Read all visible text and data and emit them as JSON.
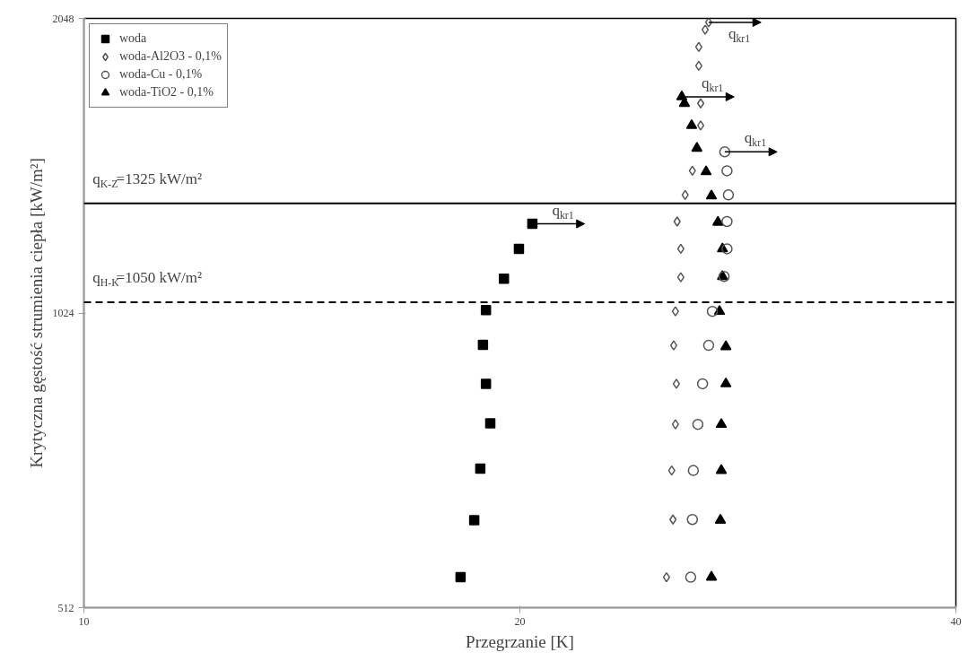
{
  "chart_data": {
    "type": "scatter",
    "xlabel": "Przegrzanie [K]",
    "ylabel": "Krytyczna gęstość strumienia ciepła [kW/m²]",
    "log": "xy",
    "xlim": [
      10,
      40
    ],
    "ylim": [
      512,
      2048
    ],
    "xticks": [
      10,
      20,
      40
    ],
    "yticks": [
      512,
      1024,
      2048
    ],
    "grid": false,
    "legend": "top left",
    "series": [
      {
        "name": "woda",
        "color": "#000000",
        "marker": "square",
        "x": [
          20.4,
          19.97,
          19.5,
          18.95,
          18.86,
          18.95,
          19.08,
          18.78,
          18.6,
          18.2
        ],
        "values": [
          1263,
          1191,
          1110,
          1031,
          950,
          867,
          790,
          710,
          629,
          550
        ]
      },
      {
        "name": "woda-Al2O3 - 0,1%",
        "color": "#555555",
        "marker": "diamond",
        "x": [
          27.0,
          26.85,
          26.58,
          26.58,
          26.66,
          26.66,
          26.31,
          26.01,
          25.68,
          25.83,
          25.83,
          25.61,
          25.54,
          25.65,
          25.61,
          25.46,
          25.51,
          25.25
        ],
        "values": [
          2029,
          1994,
          1915,
          1832,
          1677,
          1592,
          1431,
          1352,
          1270,
          1191,
          1114,
          1028,
          949,
          867,
          788,
          707,
          630,
          550
        ]
      },
      {
        "name": "woda-Cu - 0,1%",
        "color": "#555555",
        "marker": "circle",
        "x": [
          27.7,
          27.8,
          27.86,
          27.8,
          27.8,
          27.67,
          27.16,
          27.0,
          26.74,
          26.54,
          26.35,
          26.31,
          26.24
        ],
        "values": [
          1496,
          1431,
          1352,
          1270,
          1191,
          1116,
          1028,
          949,
          867,
          788,
          707,
          630,
          550
        ]
      },
      {
        "name": "woda-TiO2 - 0,1%",
        "color": "#000000",
        "marker": "triangle",
        "x": [
          25.87,
          25.98,
          26.28,
          26.5,
          26.89,
          27.12,
          27.4,
          27.6,
          27.6,
          27.47,
          27.75,
          27.75,
          27.55,
          27.55,
          27.51,
          27.12
        ],
        "values": [
          1703,
          1677,
          1592,
          1509,
          1428,
          1349,
          1268,
          1191,
          1116,
          1028,
          946,
          867,
          788,
          707,
          629,
          550
        ]
      }
    ],
    "ref_lines": [
      {
        "axis": "y",
        "value": 1325,
        "label": "q$_{K-Z}$=1325 kW/m²",
        "line_style": "solid"
      },
      {
        "axis": "y",
        "value": 1050,
        "label": "q$_{H-K}$=1050 kW/m²",
        "line_style": "dashed"
      }
    ],
    "annotations": [
      {
        "text": "q$_{kr1}$",
        "x": 20.4,
        "y": 1263
      },
      {
        "text": "q$_{kr1}$",
        "x": 27.0,
        "y": 2029
      },
      {
        "text": "q$_{kr1}$",
        "x": 25.87,
        "y": 1703
      },
      {
        "text": "q$_{kr1}$",
        "x": 27.7,
        "y": 1496
      }
    ]
  }
}
